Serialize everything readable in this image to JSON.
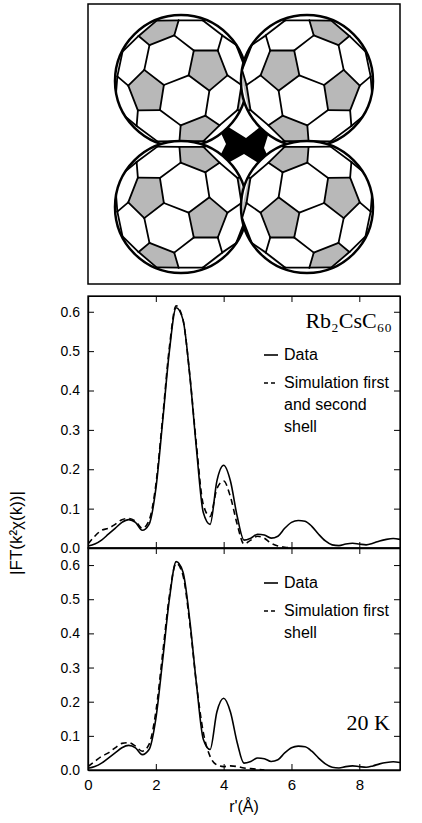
{
  "chart_data": [
    {
      "type": "line",
      "title": "Rb₂CsC₆₀",
      "y_label": "|FT(k²χ(k))|",
      "x": [
        0,
        0.2,
        0.4,
        0.6,
        0.8,
        1,
        1.2,
        1.4,
        1.6,
        1.8,
        2,
        2.2,
        2.4,
        2.6,
        2.8,
        3,
        3.2,
        3.4,
        3.6,
        3.8,
        4,
        4.2,
        4.4,
        4.6,
        4.8,
        5,
        5.2,
        5.4,
        5.6,
        5.8,
        6,
        6.2,
        6.4,
        6.6,
        6.8,
        7,
        7.2,
        7.4,
        7.6,
        7.8,
        8,
        8.2,
        8.4,
        8.6,
        8.8,
        9,
        9.2
      ],
      "series": [
        {
          "name": "Data",
          "color": "#000000",
          "line_style": "solid",
          "values": [
            0.005,
            0.01,
            0.02,
            0.035,
            0.05,
            0.065,
            0.072,
            0.065,
            0.045,
            0.06,
            0.15,
            0.32,
            0.5,
            0.61,
            0.58,
            0.44,
            0.25,
            0.09,
            0.06,
            0.17,
            0.21,
            0.17,
            0.08,
            0.02,
            0.025,
            0.035,
            0.033,
            0.025,
            0.03,
            0.05,
            0.065,
            0.07,
            0.068,
            0.055,
            0.035,
            0.018,
            0.008,
            0.006,
            0.01,
            0.012,
            0.01,
            0.008,
            0.012,
            0.018,
            0.022,
            0.024,
            0.022
          ]
        },
        {
          "name": "Simulation first and second shell",
          "color": "#000000",
          "line_style": "dashed",
          "values": [
            0.01,
            0.03,
            0.045,
            0.05,
            0.06,
            0.072,
            0.075,
            0.068,
            0.05,
            0.07,
            0.16,
            0.33,
            0.51,
            0.615,
            0.58,
            0.44,
            0.26,
            0.11,
            0.08,
            0.15,
            0.17,
            0.13,
            0.06,
            0.01,
            0.02,
            0.03,
            0.025,
            0.012,
            0.005,
            0.002,
            0,
            null,
            null,
            null,
            null,
            null,
            null,
            null,
            null,
            null,
            null,
            null,
            null,
            null,
            null,
            null,
            null
          ]
        }
      ],
      "xlim": [
        0,
        9.2
      ],
      "xticks": [
        0,
        2,
        4,
        6,
        8
      ],
      "ylim": [
        0,
        0.64
      ],
      "yticks": [
        {
          "value": 0,
          "label": "0.0"
        },
        {
          "value": 0.1,
          "label": "0.1"
        },
        {
          "value": 0.2,
          "label": "0.2"
        },
        {
          "value": 0.3,
          "label": "0.3"
        },
        {
          "value": 0.4,
          "label": "0.4"
        },
        {
          "value": 0.5,
          "label": "0.5"
        },
        {
          "value": 0.6,
          "label": "0.6"
        }
      ],
      "tick_labels": "y",
      "legend": "upper right",
      "grid": false
    },
    {
      "type": "line",
      "x_label": "r'(Å)",
      "annotations": [
        "20 K"
      ],
      "x": [
        0,
        0.2,
        0.4,
        0.6,
        0.8,
        1,
        1.2,
        1.4,
        1.6,
        1.8,
        2,
        2.2,
        2.4,
        2.6,
        2.8,
        3,
        3.2,
        3.4,
        3.6,
        3.8,
        4,
        4.2,
        4.4,
        4.6,
        4.8,
        5,
        5.2,
        5.4,
        5.6,
        5.8,
        6,
        6.2,
        6.4,
        6.6,
        6.8,
        7,
        7.2,
        7.4,
        7.6,
        7.8,
        8,
        8.2,
        8.4,
        8.6,
        8.8,
        9,
        9.2
      ],
      "series": [
        {
          "name": "Data",
          "color": "#000000",
          "line_style": "solid",
          "values": [
            0.005,
            0.01,
            0.02,
            0.035,
            0.05,
            0.065,
            0.072,
            0.065,
            0.045,
            0.06,
            0.15,
            0.32,
            0.5,
            0.61,
            0.58,
            0.44,
            0.25,
            0.09,
            0.06,
            0.17,
            0.21,
            0.17,
            0.08,
            0.02,
            0.025,
            0.035,
            0.033,
            0.025,
            0.03,
            0.05,
            0.065,
            0.07,
            0.068,
            0.055,
            0.035,
            0.018,
            0.008,
            0.006,
            0.01,
            0.012,
            0.01,
            0.008,
            0.012,
            0.018,
            0.022,
            0.024,
            0.022
          ]
        },
        {
          "name": "Simulation first shell",
          "color": "#000000",
          "line_style": "dashed",
          "values": [
            0.01,
            0.025,
            0.04,
            0.05,
            0.065,
            0.078,
            0.08,
            0.07,
            0.055,
            0.075,
            0.17,
            0.34,
            0.51,
            0.605,
            0.57,
            0.43,
            0.25,
            0.11,
            0.04,
            0.015,
            0.01,
            0.012,
            0.01,
            0.006,
            0.004,
            0.002,
            0,
            null,
            null,
            null,
            null,
            null,
            null,
            null,
            null,
            null,
            null,
            null,
            null,
            null,
            null,
            null,
            null,
            null,
            null,
            null,
            null
          ]
        }
      ],
      "xlim": [
        0,
        9.2
      ],
      "xticks": [
        0,
        2,
        4,
        6,
        8
      ],
      "ylim": [
        0,
        0.65
      ],
      "yticks": [
        {
          "value": 0,
          "label": "0.0"
        },
        {
          "value": 0.1,
          "label": "0.1"
        },
        {
          "value": 0.2,
          "label": "0.2"
        },
        {
          "value": 0.3,
          "label": "0.3"
        },
        {
          "value": 0.4,
          "label": "0.4"
        },
        {
          "value": 0.5,
          "label": "0.5"
        },
        {
          "value": 0.6,
          "label": "0.6"
        }
      ],
      "legend": "upper right",
      "grid": false
    }
  ]
}
